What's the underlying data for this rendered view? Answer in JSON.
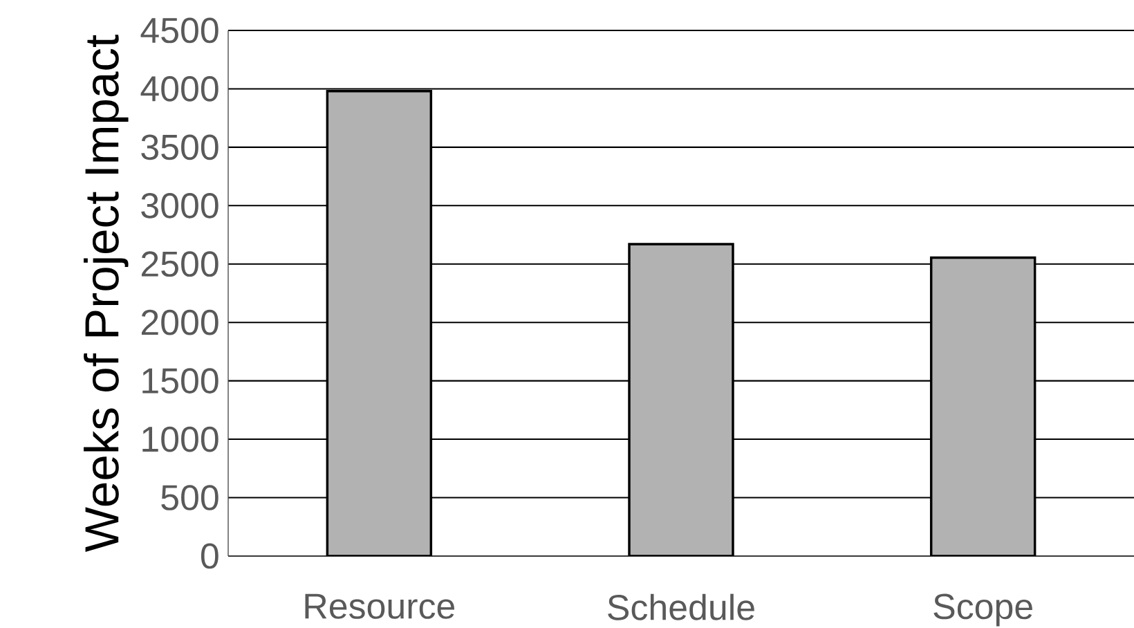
{
  "chart_data": {
    "type": "bar",
    "ylabel": "Weeks of Project Impact",
    "categories": [
      "Resource",
      "Schedule",
      "Scope"
    ],
    "values": [
      3980,
      2670,
      2555
    ],
    "color": "#b2b2b2",
    "ylim": [
      0,
      4500
    ],
    "yticks": [
      0,
      500,
      1000,
      1500,
      2000,
      2500,
      3000,
      3500,
      4000,
      4500
    ],
    "grid": "y"
  }
}
